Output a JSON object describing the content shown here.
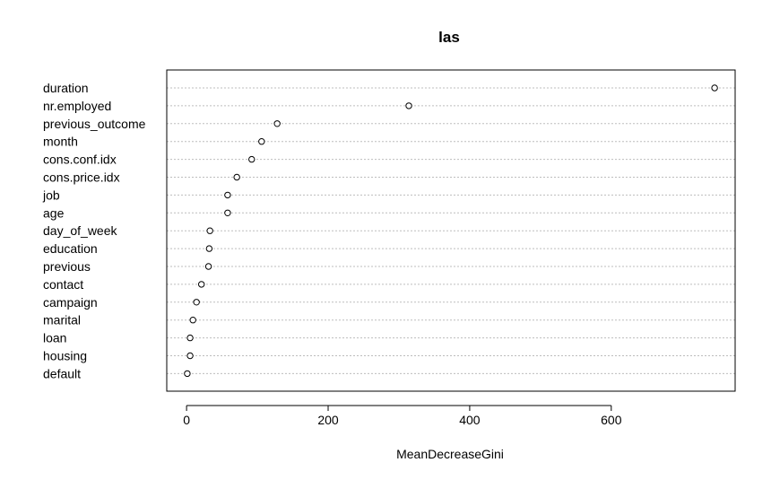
{
  "chart_data": {
    "type": "scatter",
    "style": "dotchart",
    "title": "las",
    "xlabel": "MeanDecreaseGini",
    "ylabel": "",
    "xlim": [
      -28,
      775
    ],
    "xticks": [
      0,
      200,
      400,
      600
    ],
    "grid": true,
    "categories": [
      "duration",
      "nr.employed",
      "previous_outcome",
      "month",
      "cons.conf.idx",
      "cons.price.idx",
      "job",
      "age",
      "day_of_week",
      "education",
      "previous",
      "contact",
      "campaign",
      "marital",
      "loan",
      "housing",
      "default"
    ],
    "values": [
      746,
      314,
      128,
      106,
      92,
      71,
      58,
      58,
      33,
      32,
      31,
      21,
      14,
      9,
      5,
      5,
      1
    ]
  }
}
